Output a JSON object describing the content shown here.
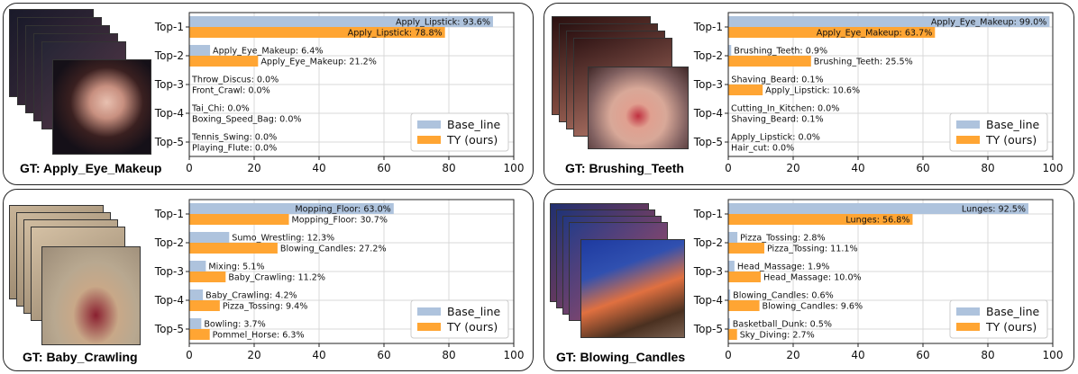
{
  "colors": {
    "baseline": "#aec3dd",
    "ours": "#ffa533"
  },
  "legend": {
    "baseline": "Base_line",
    "ours": "TY (ours)"
  },
  "chart_data": [
    {
      "type": "bar",
      "orientation": "horizontal",
      "gt_label": "GT: Apply_Eye_Makeup",
      "categories": [
        "Top-1",
        "Top-2",
        "Top-3",
        "Top-4",
        "Top-5"
      ],
      "xlim": [
        0,
        100
      ],
      "xticks": [
        0,
        20,
        40,
        60,
        80,
        100
      ],
      "grid": true,
      "legend_position": "lower-right",
      "series": [
        {
          "name": "Base_line",
          "values": [
            93.6,
            6.4,
            0.0,
            0.0,
            0.0
          ],
          "labels": [
            "Apply_Lipstick: 93.6%",
            "Apply_Eye_Makeup: 6.4%",
            "Throw_Discus: 0.0%",
            "Tai_Chi: 0.0%",
            "Tennis_Swing: 0.0%"
          ]
        },
        {
          "name": "TY (ours)",
          "values": [
            78.8,
            21.2,
            0.0,
            0.0,
            0.0
          ],
          "labels": [
            "Apply_Lipstick: 78.8%",
            "Apply_Eye_Makeup: 21.2%",
            "Front_Crawl: 0.0%",
            "Boxing_Speed_Bag: 0.0%",
            "Playing_Flute: 0.0%"
          ]
        }
      ]
    },
    {
      "type": "bar",
      "orientation": "horizontal",
      "gt_label": "GT: Brushing_Teeth",
      "categories": [
        "Top-1",
        "Top-2",
        "Top-3",
        "Top-4",
        "Top-5"
      ],
      "xlim": [
        0,
        100
      ],
      "xticks": [
        0,
        20,
        40,
        60,
        80,
        100
      ],
      "grid": true,
      "legend_position": "lower-right",
      "series": [
        {
          "name": "Base_line",
          "values": [
            99.0,
            0.9,
            0.1,
            0.0,
            0.0
          ],
          "labels": [
            "Apply_Eye_Makeup: 99.0%",
            "Brushing_Teeth: 0.9%",
            "Shaving_Beard: 0.1%",
            "Cutting_In_Kitchen: 0.0%",
            "Apply_Lipstick: 0.0%"
          ]
        },
        {
          "name": "TY (ours)",
          "values": [
            63.7,
            25.5,
            10.6,
            0.1,
            0.0
          ],
          "labels": [
            "Apply_Eye_Makeup: 63.7%",
            "Brushing_Teeth: 25.5%",
            "Apply_Lipstick: 10.6%",
            "Shaving_Beard: 0.1%",
            "Hair_cut: 0.0%"
          ]
        }
      ]
    },
    {
      "type": "bar",
      "orientation": "horizontal",
      "gt_label": "GT: Baby_Crawling",
      "categories": [
        "Top-1",
        "Top-2",
        "Top-3",
        "Top-4",
        "Top-5"
      ],
      "xlim": [
        0,
        100
      ],
      "xticks": [
        0,
        20,
        40,
        60,
        80,
        100
      ],
      "grid": true,
      "legend_position": "lower-right",
      "series": [
        {
          "name": "Base_line",
          "values": [
            63.0,
            12.3,
            5.1,
            4.2,
            3.7
          ],
          "labels": [
            "Mopping_Floor: 63.0%",
            "Sumo_Wrestling: 12.3%",
            "Mixing: 5.1%",
            "Baby_Crawling: 4.2%",
            "Bowling: 3.7%"
          ]
        },
        {
          "name": "TY (ours)",
          "values": [
            30.7,
            27.2,
            11.2,
            9.4,
            6.3
          ],
          "labels": [
            "Mopping_Floor: 30.7%",
            "Blowing_Candles: 27.2%",
            "Baby_Crawling: 11.2%",
            "Pizza_Tossing: 9.4%",
            "Pommel_Horse: 6.3%"
          ]
        }
      ]
    },
    {
      "type": "bar",
      "orientation": "horizontal",
      "gt_label": "GT: Blowing_Candles",
      "categories": [
        "Top-1",
        "Top-2",
        "Top-3",
        "Top-4",
        "Top-5"
      ],
      "xlim": [
        0,
        100
      ],
      "xticks": [
        0,
        20,
        40,
        60,
        80,
        100
      ],
      "grid": true,
      "legend_position": "lower-right",
      "series": [
        {
          "name": "Base_line",
          "values": [
            92.5,
            2.8,
            1.9,
            0.6,
            0.5
          ],
          "labels": [
            "Lunges: 92.5%",
            "Pizza_Tossing: 2.8%",
            "Head_Massage: 1.9%",
            "Blowing_Candles: 0.6%",
            "Basketball_Dunk: 0.5%"
          ]
        },
        {
          "name": "TY (ours)",
          "values": [
            56.8,
            11.1,
            10.0,
            9.6,
            2.7
          ],
          "labels": [
            "Lunges: 56.8%",
            "Pizza_Tossing: 11.1%",
            "Head_Massage: 10.0%",
            "Blowing_Candles: 9.6%",
            "Sky_Diving: 2.7%"
          ]
        }
      ]
    }
  ]
}
